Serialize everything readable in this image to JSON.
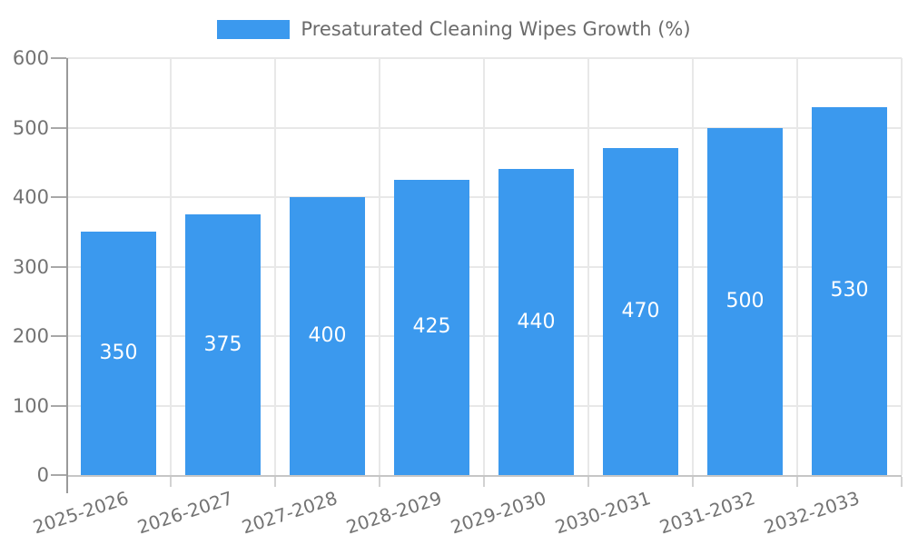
{
  "legend": {
    "label": "Presaturated Cleaning Wipes Growth (%)"
  },
  "colors": {
    "bar": "#3B99EE",
    "grid": "#e8e8e8",
    "axis_y": "#9a9a9a",
    "axis_x": "#c6c6c6",
    "tick_y": "#a8a8a8",
    "tick_x": "#d2d2d2",
    "tick_text": "#737373",
    "legend_text": "#6b6b6b",
    "bar_label": "#ffffff",
    "background": "#ffffff"
  },
  "chart_data": {
    "type": "bar",
    "title": "Presaturated Cleaning Wipes Growth (%)",
    "categories": [
      "2025-2026",
      "2026-2027",
      "2027-2028",
      "2028-2029",
      "2029-2030",
      "2030-2031",
      "2031-2032",
      "2032-2033"
    ],
    "values": [
      350,
      375,
      400,
      425,
      440,
      470,
      500,
      530
    ],
    "xlabel": "",
    "ylabel": "",
    "ylim": [
      0,
      600
    ],
    "yticks": [
      0,
      100,
      200,
      300,
      400,
      500,
      600
    ],
    "grid": true,
    "legend_position": "top-center",
    "bar_value_labels": "inside-middle",
    "x_tick_rotation_deg": -18
  }
}
